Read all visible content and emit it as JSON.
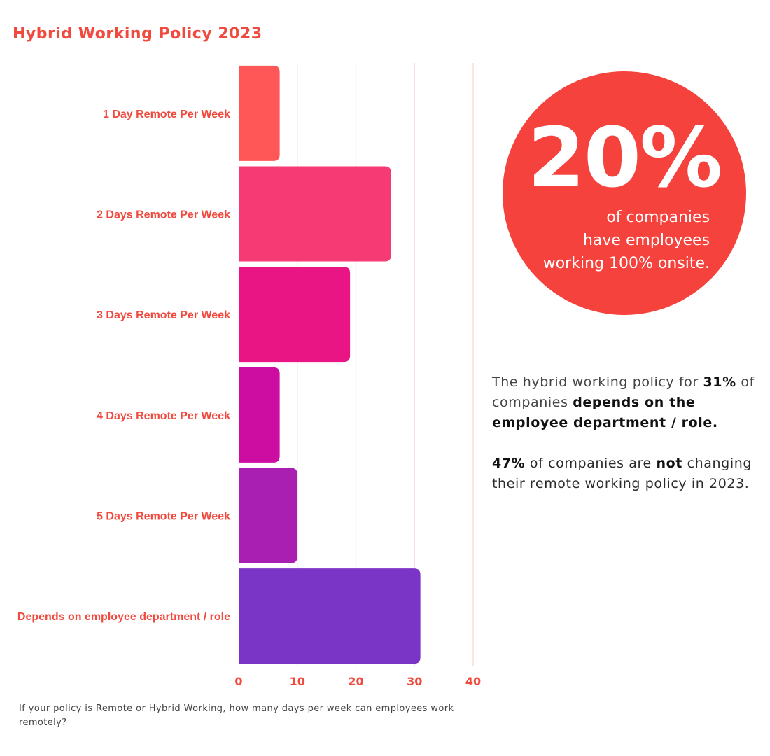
{
  "chart_data": {
    "type": "bar",
    "orientation": "horizontal",
    "title": "Hybrid Working Policy 2023",
    "categories": [
      "1 Day Remote Per Week",
      "2 Days Remote Per Week",
      "3 Days Remote Per Week",
      "4 Days Remote Per Week",
      "5 Days Remote Per Week",
      "Depends on employee department / role"
    ],
    "values": [
      7,
      26,
      19,
      7,
      10,
      31
    ],
    "bar_colors": [
      "#ff5757",
      "#f63a73",
      "#e91584",
      "#cd0ca1",
      "#a91fb2",
      "#7a35c7"
    ],
    "xlim": [
      0,
      40
    ],
    "xticks": [
      0,
      10,
      20,
      30,
      40
    ],
    "grid": true,
    "caption": "If your policy is Remote or Hybrid Working, how many days per week can employees work remotely?"
  },
  "stat_circle": {
    "value": "20%",
    "line1": "of companies",
    "line2": "have employees",
    "line3": "working 100% onsite."
  },
  "notes": {
    "p1_a": "The hybrid working policy for ",
    "p1_b": "31%",
    "p1_c": " of companies ",
    "p1_d": "depends on the employee department / role.",
    "p2_a": "47%",
    "p2_b": " of companies are ",
    "p2_c": "not",
    "p2_d": " changing their remote working policy in 2023."
  },
  "colors": {
    "accent": "#f04a3f",
    "circle": "#f6423c",
    "grid": "#fbd3d0"
  }
}
